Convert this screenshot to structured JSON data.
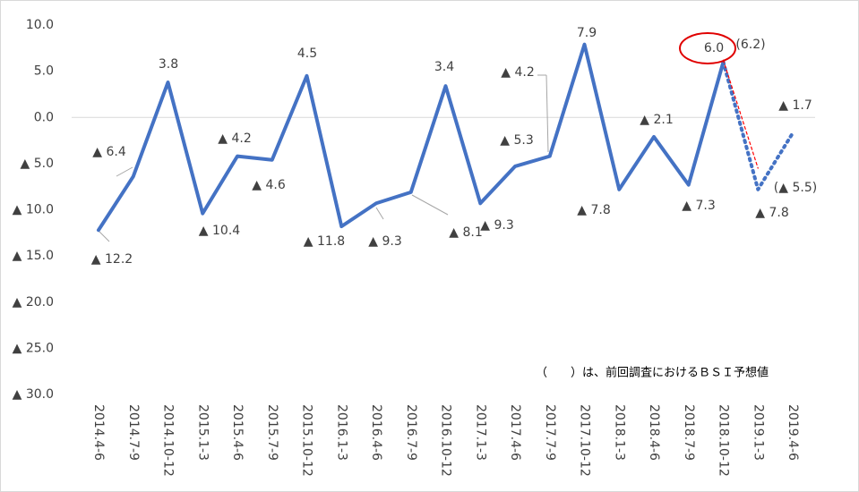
{
  "chart_data": {
    "type": "line",
    "categories": [
      "2014.4-6",
      "2014.7-9",
      "2014.10-12",
      "2015.1-3",
      "2015.4-6",
      "2015.7-9",
      "2015.10-12",
      "2016.1-3",
      "2016.4-6",
      "2016.7-9",
      "2016.10-12",
      "2017.1-3",
      "2017.4-6",
      "2017.7-9",
      "2017.10-12",
      "2018.1-3",
      "2018.4-6",
      "2018.7-9",
      "2018.10-12",
      "2019.1-3",
      "2019.4-6"
    ],
    "series": [
      {
        "color": "#4472c4",
        "style": "solid",
        "values": [
          -12.2,
          -6.4,
          3.8,
          -10.4,
          -4.2,
          -4.6,
          4.5,
          -11.8,
          -9.3,
          -8.1,
          3.4,
          -9.3,
          -5.3,
          -4.2,
          7.9,
          -7.8,
          -2.1,
          -7.3,
          6.0,
          null,
          null
        ],
        "value_labels": [
          "▲ 12.2",
          "▲ 6.4",
          "3.8",
          "▲ 10.4",
          "▲ 4.2",
          "▲ 4.6",
          "4.5",
          "▲ 11.8",
          "▲ 9.3",
          "▲ 8.1",
          "3.4",
          "▲ 9.3",
          "▲ 5.3",
          "▲ 4.2",
          "7.9",
          "▲ 7.8",
          "▲ 2.1",
          "▲ 7.3",
          null,
          null,
          null
        ]
      },
      {
        "color": "#4472c4",
        "style": "dotted",
        "values": [
          null,
          null,
          null,
          null,
          null,
          null,
          null,
          null,
          null,
          null,
          null,
          null,
          null,
          null,
          null,
          null,
          null,
          null,
          6.0,
          -7.8,
          -1.7
        ],
        "value_labels": [
          null,
          null,
          null,
          null,
          null,
          null,
          null,
          null,
          null,
          null,
          null,
          null,
          null,
          null,
          null,
          null,
          null,
          null,
          "6.0",
          "▲ 7.8",
          "▲ 1.7"
        ]
      },
      {
        "color": "#ff0000",
        "style": "dashed",
        "values": [
          null,
          null,
          null,
          null,
          null,
          null,
          null,
          null,
          null,
          null,
          null,
          null,
          null,
          null,
          null,
          null,
          null,
          null,
          6.2,
          -5.5,
          null
        ],
        "value_labels": [
          null,
          null,
          null,
          null,
          null,
          null,
          null,
          null,
          null,
          null,
          null,
          null,
          null,
          null,
          null,
          null,
          null,
          null,
          "(6.2)",
          "(▲ 5.5)",
          null
        ]
      }
    ],
    "annotation": "（　　）は、前回調査におけるＢＳＩ予想値",
    "ylim": [
      -30,
      10
    ],
    "yticks": [
      {
        "value": -30,
        "label": "▲ 30.0"
      },
      {
        "value": -25,
        "label": "▲ 25.0"
      },
      {
        "value": -20,
        "label": "▲ 20.0"
      },
      {
        "value": -15,
        "label": "▲ 15.0"
      },
      {
        "value": -10,
        "label": "▲ 10.0"
      },
      {
        "value": -5,
        "label": "▲ 5.0"
      },
      {
        "value": 0,
        "label": "0.0"
      },
      {
        "value": 5,
        "label": "5.0"
      },
      {
        "value": 10,
        "label": "10.0"
      }
    ],
    "grid": false
  }
}
